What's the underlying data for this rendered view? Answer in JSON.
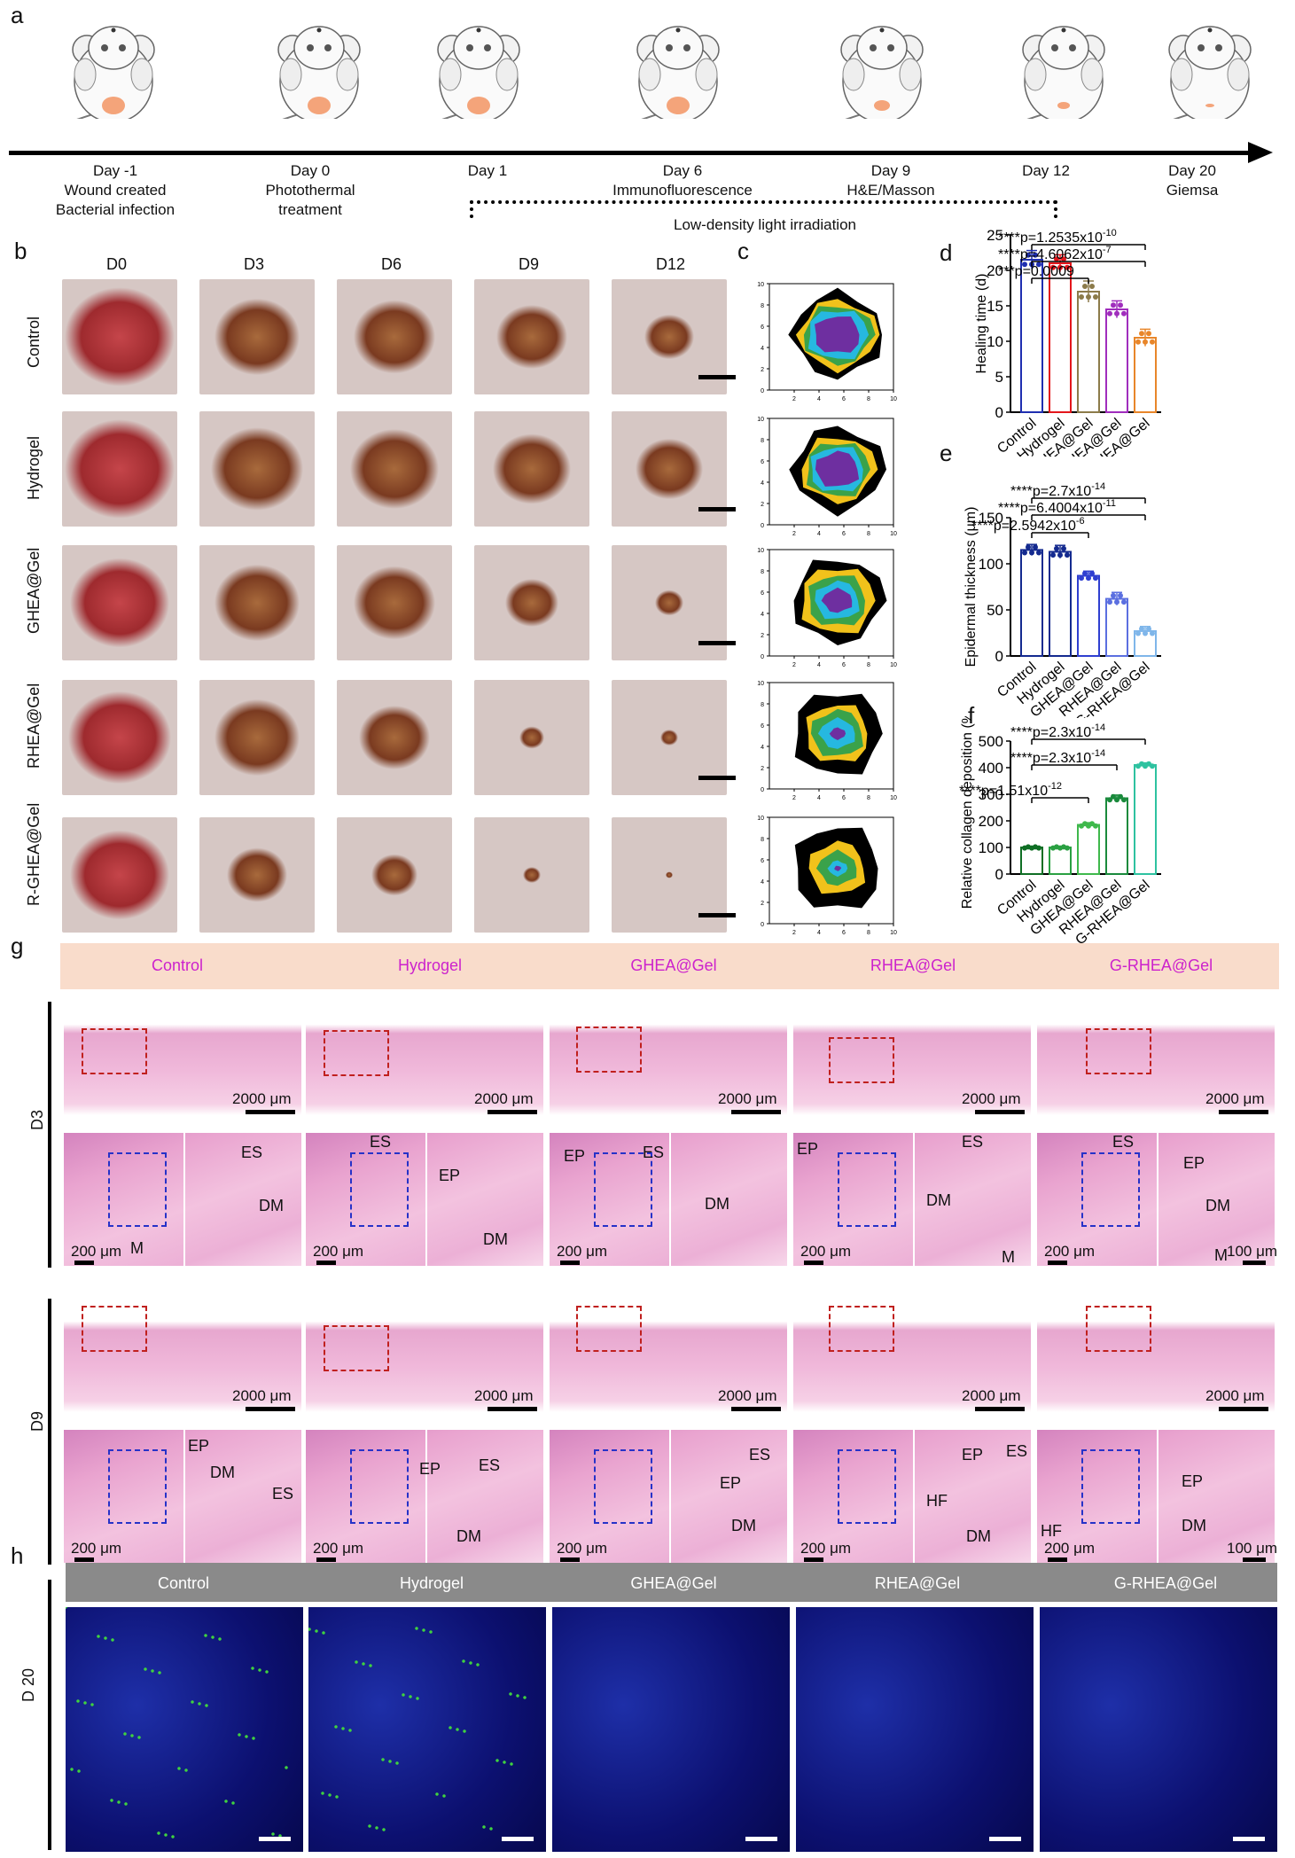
{
  "panels": {
    "a": "a",
    "b": "b",
    "c": "c",
    "d": "d",
    "e": "e",
    "f": "f",
    "g": "g",
    "h": "h"
  },
  "timeline": {
    "events": [
      {
        "day": "Day -1",
        "desc": "Wound created\nBacterial infection"
      },
      {
        "day": "Day 0",
        "desc": "Photothermal\ntreatment"
      },
      {
        "day": "Day 1",
        "desc": ""
      },
      {
        "day": "Day 6",
        "desc": "Immunofluorescence"
      },
      {
        "day": "Day 9",
        "desc": "H&E/Masson"
      },
      {
        "day": "Day 12",
        "desc": ""
      },
      {
        "day": "Day 20",
        "desc": "Giemsa"
      }
    ],
    "irradiation_label": "Low-density light irradiation"
  },
  "panel_b": {
    "days": [
      "D0",
      "D3",
      "D6",
      "D9",
      "D12"
    ],
    "groups": [
      "Control",
      "Hydrogel",
      "GHEA@Gel",
      "RHEA@Gel",
      "R-GHEA@Gel"
    ]
  },
  "panel_c": {
    "ticks": [
      "2",
      "4",
      "6",
      "8",
      "10"
    ],
    "yticks": [
      "0",
      "2",
      "4",
      "6",
      "8",
      "10"
    ]
  },
  "chart_data": [
    {
      "type": "bar",
      "panel": "d",
      "categories": [
        "Control",
        "Hydrogel",
        "GHEA@Gel",
        "RHEA@Gel",
        "G-RHEA@Gel"
      ],
      "values": [
        21.5,
        21,
        17,
        14.5,
        10.5
      ],
      "errors": [
        1.3,
        1.2,
        1.5,
        1.2,
        1.2
      ],
      "ylabel": "Healing time (d)",
      "ylim": [
        0,
        25
      ],
      "yticks": [
        "0",
        "5",
        "10",
        "15",
        "20",
        "25"
      ],
      "colors": [
        "#1f2fb0",
        "#e3161b",
        "#8c7b4a",
        "#a02dbd",
        "#e8862a"
      ],
      "significance": [
        "****p=1.2535x10",
        "-10",
        "****p=4.6062x10",
        "-7",
        "***p=0.0009"
      ]
    },
    {
      "type": "bar",
      "panel": "e",
      "categories": [
        "Control",
        "Hydrogel",
        "GHEA@Gel",
        "RHEA@Gel",
        "G-RHEA@Gel"
      ],
      "values": [
        115,
        113,
        87,
        62,
        27
      ],
      "errors": [
        6,
        7,
        5,
        7,
        5
      ],
      "ylabel": "Epidermal thickness (μm)",
      "ylim": [
        0,
        150
      ],
      "yticks": [
        "0",
        "50",
        "100",
        "150"
      ],
      "colors": [
        "#142a8f",
        "#142a8f",
        "#2f3fd0",
        "#5b6fe0",
        "#7fb6ea"
      ],
      "significance": [
        "****p=2.7x10",
        "-14",
        "****p=6.4004x10",
        "-11",
        "****p=2.5942x10",
        "-6"
      ]
    },
    {
      "type": "bar",
      "panel": "f",
      "categories": [
        "Control",
        "Hydrogel",
        "GHEA@Gel",
        "RHEA@Gel",
        "G-RHEA@Gel"
      ],
      "values": [
        100,
        100,
        185,
        285,
        410
      ],
      "errors": [
        4,
        4,
        8,
        12,
        8
      ],
      "ylabel": "Relative collagen deposition (%)",
      "ylim": [
        0,
        500
      ],
      "yticks": [
        "0",
        "100",
        "200",
        "300",
        "400",
        "500"
      ],
      "colors": [
        "#0f6e24",
        "#2aa042",
        "#3fb84c",
        "#1a8a3c",
        "#2ec2a0"
      ],
      "significance": [
        "****p=2.3x10",
        "-14",
        "****p=2.3x10",
        "-14",
        "****p=1.51x10",
        "-12"
      ]
    }
  ],
  "panel_g": {
    "groups": [
      "Control",
      "Hydrogel",
      "GHEA@Gel",
      "RHEA@Gel",
      "G-RHEA@Gel"
    ],
    "rows": [
      "D3",
      "D9"
    ],
    "scale_big": "2000 μm",
    "scale_small": "200 μm",
    "scale_tiny": "100 μm",
    "labels": {
      "ES": "ES",
      "EP": "EP",
      "DM": "DM",
      "M": "M",
      "HF": "HF"
    }
  },
  "panel_h": {
    "groups": [
      "Control",
      "Hydrogel",
      "GHEA@Gel",
      "RHEA@Gel",
      "G-RHEA@Gel"
    ],
    "row": "D 20"
  }
}
